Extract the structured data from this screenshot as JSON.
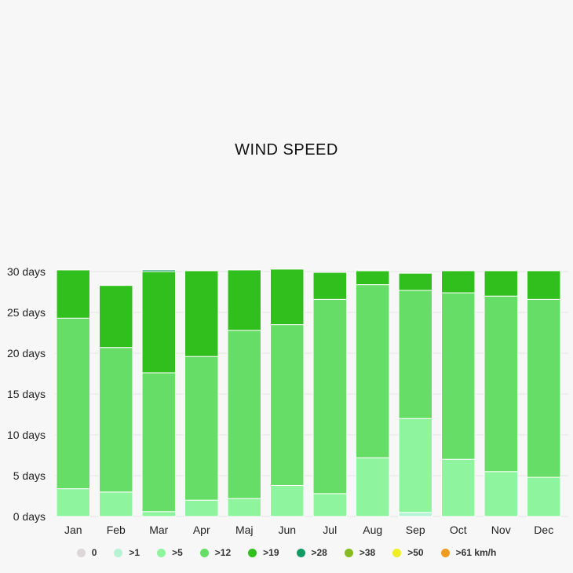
{
  "chart_data": {
    "type": "bar",
    "stacked": true,
    "title": "WIND SPEED",
    "categories": [
      "Jan",
      "Feb",
      "Mar",
      "Apr",
      "Maj",
      "Jun",
      "Jul",
      "Aug",
      "Sep",
      "Oct",
      "Nov",
      "Dec"
    ],
    "y_tick_labels": [
      "0 days",
      "5 days",
      "10 days",
      "15 days",
      "20 days",
      "25 days",
      "30 days"
    ],
    "ylim": [
      0,
      30
    ],
    "grid": true,
    "legend_position": "bottom",
    "series": [
      {
        "name": "0",
        "color": "#dcd6d8",
        "values": [
          0,
          0,
          0,
          0,
          0,
          0,
          0,
          0,
          0,
          0,
          0,
          0
        ]
      },
      {
        "name": ">1",
        "color": "#b6f3d4",
        "values": [
          0,
          0,
          0,
          0,
          0,
          0,
          0,
          0,
          0.5,
          0,
          0,
          0
        ]
      },
      {
        "name": ">5",
        "color": "#8ef59e",
        "values": [
          3.4,
          3.0,
          0.6,
          2.0,
          2.2,
          3.8,
          2.8,
          7.2,
          11.5,
          7.0,
          5.5,
          4.8
        ]
      },
      {
        "name": ">12",
        "color": "#66dd66",
        "values": [
          20.9,
          17.7,
          17.0,
          17.6,
          20.6,
          19.7,
          23.8,
          21.2,
          15.7,
          20.4,
          21.5,
          21.8
        ]
      },
      {
        "name": ">19",
        "color": "#31bf1e",
        "values": [
          5.9,
          7.6,
          12.4,
          10.5,
          7.4,
          6.8,
          3.3,
          1.7,
          2.1,
          2.7,
          3.1,
          3.5
        ]
      },
      {
        "name": ">28",
        "color": "#139966",
        "values": [
          0,
          0,
          0.2,
          0,
          0,
          0,
          0,
          0.1,
          0.1,
          0,
          0,
          0
        ]
      },
      {
        "name": ">38",
        "color": "#88bb22",
        "values": [
          0,
          0,
          0,
          0,
          0,
          0,
          0,
          0,
          0,
          0,
          0,
          0
        ]
      },
      {
        "name": ">50",
        "color": "#eeee22",
        "values": [
          0,
          0,
          0,
          0,
          0,
          0,
          0,
          0,
          0,
          0,
          0,
          0
        ]
      },
      {
        "name": ">61 km/h",
        "color": "#f09a20",
        "values": [
          0,
          0,
          0,
          0,
          0,
          0,
          0,
          0,
          0,
          0,
          0,
          0
        ]
      }
    ]
  }
}
